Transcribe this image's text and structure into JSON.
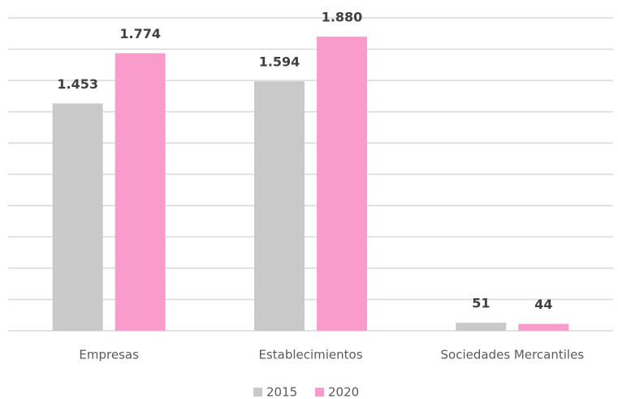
{
  "chart_data": {
    "type": "bar",
    "categories": [
      "Empresas",
      "Establecimientos",
      "Sociedades Mercantiles"
    ],
    "series": [
      {
        "name": "2015",
        "color": "#c9c9c9",
        "values": [
          1453,
          1594,
          51
        ],
        "value_labels": [
          "1.453",
          "1.594",
          "51"
        ]
      },
      {
        "name": "2020",
        "color": "#fa9ccb",
        "values": [
          1774,
          1880,
          44
        ],
        "value_labels": [
          "1.774",
          "1.880",
          "44"
        ]
      }
    ],
    "ylim": [
      0,
      2000
    ],
    "yticks": [
      0,
      200,
      400,
      600,
      800,
      1000,
      1200,
      1400,
      1600,
      1800,
      2000
    ],
    "grid": true,
    "legend": "bottom"
  }
}
